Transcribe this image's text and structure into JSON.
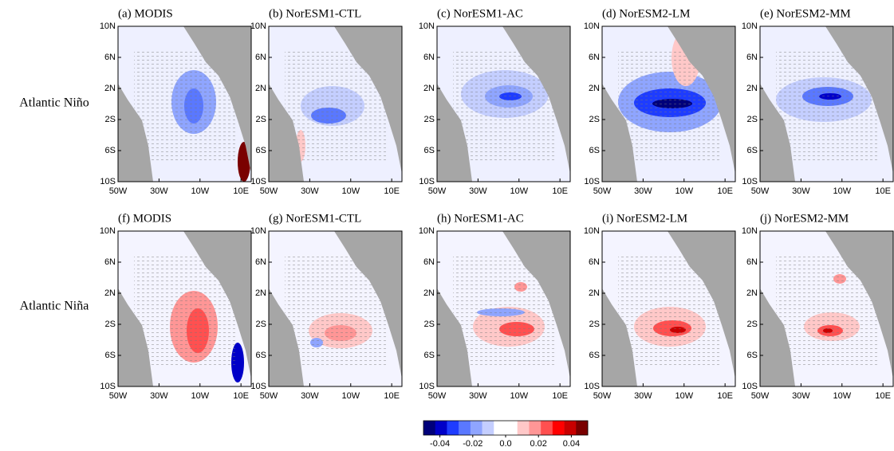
{
  "row_labels": [
    "Atlantic Niño",
    "Atlantic Niña"
  ],
  "panels": [
    {
      "title": "(a) MODIS"
    },
    {
      "title": "(b) NorESM1-CTL"
    },
    {
      "title": "(c) NorESM1-AC"
    },
    {
      "title": "(d) NorESM2-LM"
    },
    {
      "title": "(e) NorESM2-MM"
    },
    {
      "title": "(f) MODIS"
    },
    {
      "title": "(g) NorESM1-CTL"
    },
    {
      "title": "(h) NorESM1-AC"
    },
    {
      "title": "(i) NorESM2-LM"
    },
    {
      "title": "(j) NorESM2-MM"
    }
  ],
  "lat_range": [
    -10,
    10
  ],
  "lat_ticks": [
    {
      "value": 10,
      "label": "10N"
    },
    {
      "value": 6,
      "label": "6N"
    },
    {
      "value": 2,
      "label": "2N"
    },
    {
      "value": -2,
      "label": "2S"
    },
    {
      "value": -6,
      "label": "6S"
    },
    {
      "value": -10,
      "label": "10S"
    }
  ],
  "lon_range": [
    -50,
    15
  ],
  "lon_ticks": [
    {
      "value": -50,
      "label": "50W"
    },
    {
      "value": -30,
      "label": "30W"
    },
    {
      "value": -10,
      "label": "10W"
    },
    {
      "value": 10,
      "label": "10E"
    }
  ],
  "colorbar": {
    "range": [
      -0.05,
      0.05
    ],
    "ticks": [
      -0.04,
      -0.02,
      {
        "value": 0,
        "label": "0.0"
      },
      0.02,
      0.04
    ],
    "colors": [
      "#00007a",
      "#0000c8",
      "#1e3cff",
      "#5a78ff",
      "#8fa5ff",
      "#c4ceff",
      "#ffffff",
      "#ffffff",
      "#ffc8c8",
      "#ff9696",
      "#ff5050",
      "#ff0000",
      "#c80000",
      "#7a0000"
    ]
  }
}
